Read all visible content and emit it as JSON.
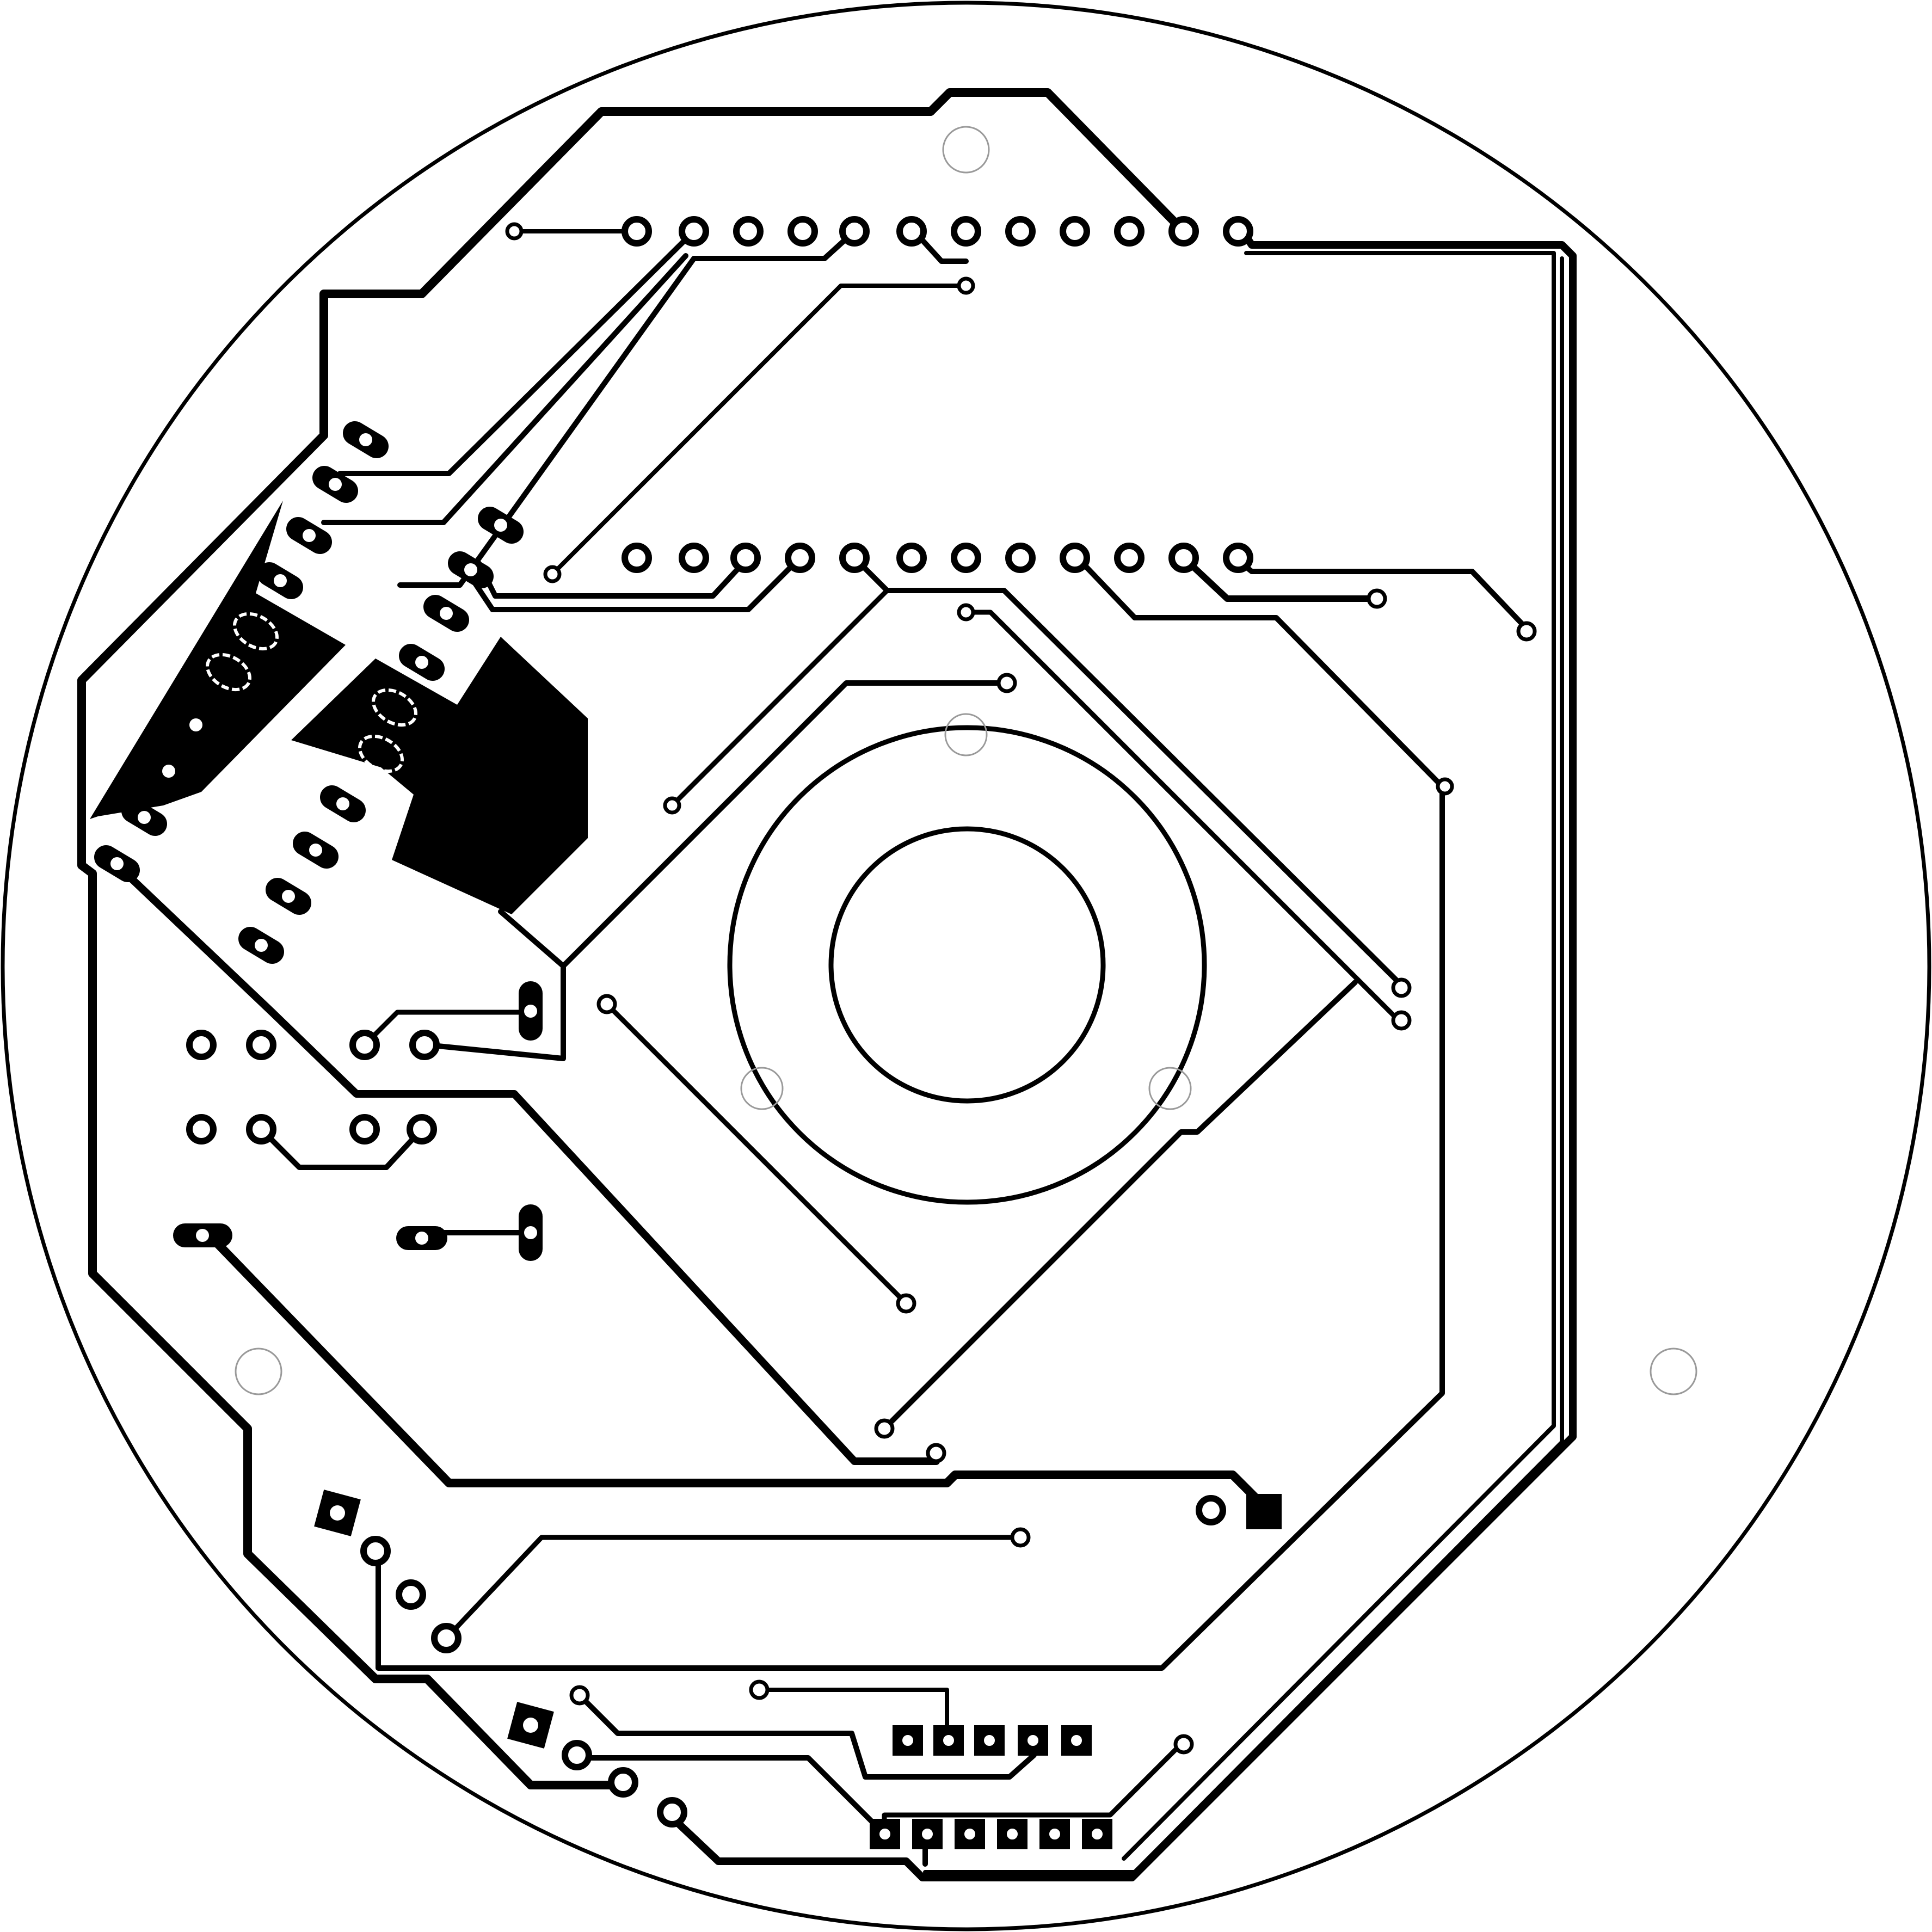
{
  "diagram": {
    "kind": "pcb-layout",
    "colors": {
      "background": "#ffffff",
      "copper": "#000000",
      "hole": "#ffffff",
      "mounting_hole_outline": "#9a9a9a"
    },
    "text_labels": []
  }
}
